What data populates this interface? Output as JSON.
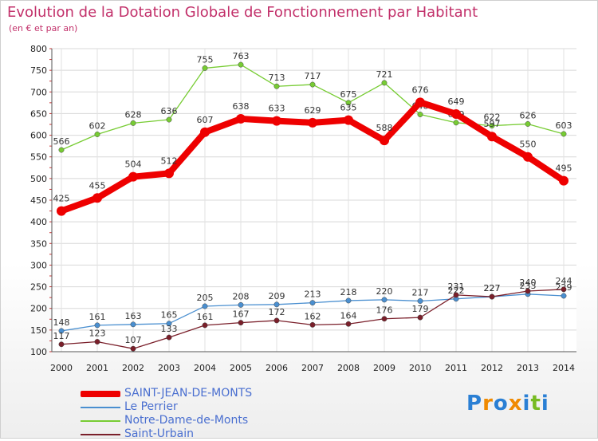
{
  "chart_data": {
    "type": "line",
    "title": "Evolution de la Dotation Globale de Fonctionnement par Habitant",
    "subtitle": "(en € et par an)",
    "xlabel": "",
    "ylabel": "",
    "x": [
      "2000",
      "2001",
      "2002",
      "2003",
      "2004",
      "2005",
      "2006",
      "2007",
      "2008",
      "2009",
      "2010",
      "2011",
      "2012",
      "2013",
      "2014"
    ],
    "ylim": [
      100,
      800
    ],
    "yticks": [
      "100",
      "150",
      "200",
      "250",
      "300",
      "350",
      "400",
      "450",
      "500",
      "550",
      "600",
      "650",
      "700",
      "750",
      "800"
    ],
    "grid": true,
    "legend_position": "bottom-left",
    "series": [
      {
        "name": "SAINT-JEAN-DE-MONTS",
        "color": "#ee0000",
        "values": [
          425,
          455,
          504,
          512,
          607,
          638,
          633,
          629,
          635,
          588,
          676,
          649,
          597,
          550,
          495
        ],
        "labels": [
          "425",
          "455",
          "504",
          "512",
          "607",
          "638",
          "633",
          "629",
          "635",
          "588",
          "676",
          "649",
          "597",
          "550",
          "495"
        ]
      },
      {
        "name": "Le Perrier",
        "color": "#4a8fd0",
        "values": [
          148,
          161,
          163,
          165,
          205,
          208,
          209,
          213,
          218,
          220,
          217,
          222,
          227,
          233,
          229
        ],
        "labels": [
          "148",
          "161",
          "163",
          "165",
          "205",
          "208",
          "209",
          "213",
          "218",
          "220",
          "217",
          "222",
          "227",
          "233",
          "229"
        ]
      },
      {
        "name": "Notre-Dame-de-Monts",
        "color": "#77cc33",
        "values": [
          566,
          602,
          628,
          636,
          755,
          763,
          713,
          717,
          675,
          721,
          648,
          629,
          622,
          626,
          603
        ],
        "labels": [
          "566",
          "602",
          "628",
          "636",
          "755",
          "763",
          "713",
          "717",
          "675",
          "721",
          "648",
          "629",
          "622",
          "626",
          "603"
        ]
      },
      {
        "name": "Saint-Urbain",
        "color": "#7a1f2a",
        "values": [
          117,
          123,
          107,
          133,
          161,
          167,
          172,
          162,
          164,
          176,
          179,
          231,
          227,
          240,
          244
        ],
        "labels": [
          "117",
          "123",
          "107",
          "133",
          "161",
          "167",
          "172",
          "162",
          "164",
          "176",
          "179",
          "231",
          "227",
          "240",
          "244"
        ]
      }
    ]
  },
  "legend": {
    "items": [
      {
        "label": "SAINT-JEAN-DE-MONTS",
        "color": "#ee0000"
      },
      {
        "label": "Le Perrier",
        "color": "#4a8fd0"
      },
      {
        "label": "Notre-Dame-de-Monts",
        "color": "#77cc33"
      },
      {
        "label": "Saint-Urbain",
        "color": "#7a1f2a"
      }
    ]
  },
  "logo": {
    "letters": [
      "P",
      "r",
      "o",
      "x",
      "i",
      "t",
      "i"
    ],
    "colors": [
      "#2a7fd4",
      "#f08a00",
      "#2a7fd4",
      "#f08a00",
      "#2a7fd4",
      "#77bb22",
      "#2a7fd4"
    ]
  }
}
